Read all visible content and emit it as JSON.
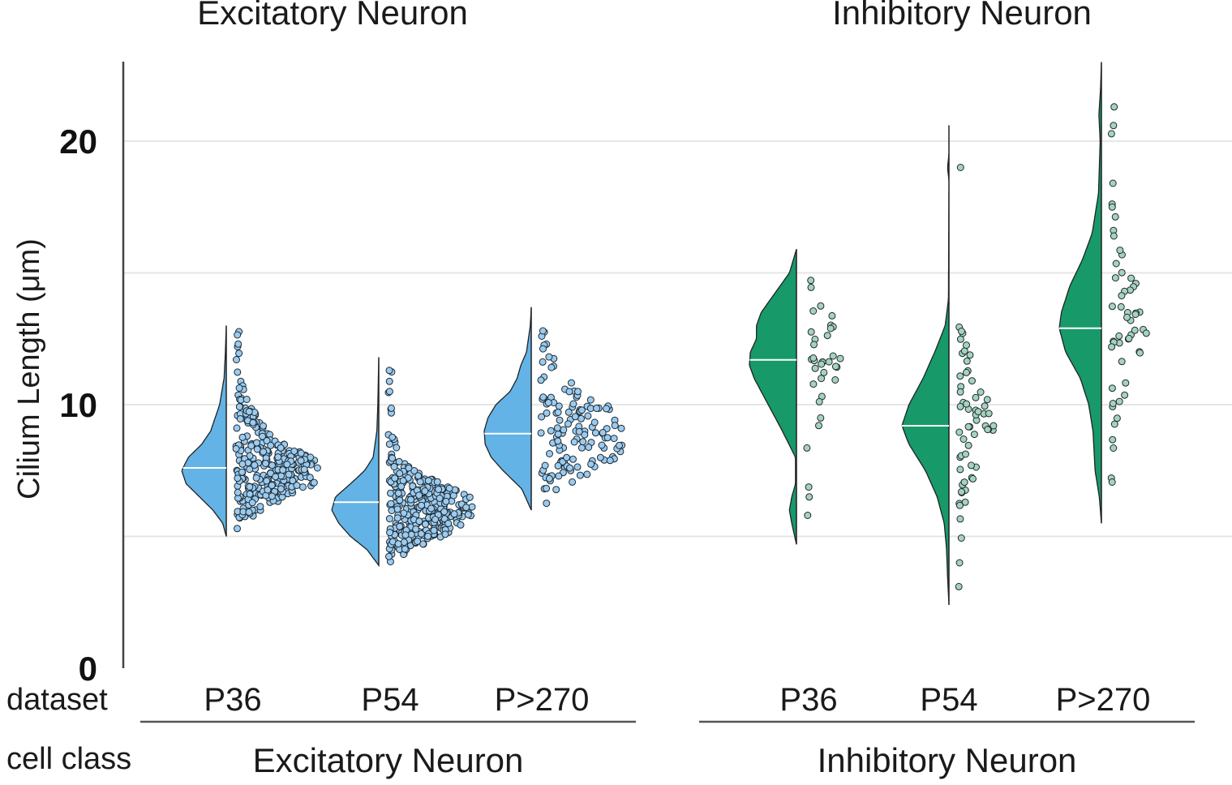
{
  "chart_data": {
    "type": "raincloud",
    "ylabel": "Cilium Length (μm)",
    "ylim": [
      0,
      23
    ],
    "yticks": [
      0,
      10,
      20
    ],
    "grid": [
      5,
      10,
      15,
      20
    ],
    "row_labels": {
      "dataset": "dataset",
      "cell_class": "cell class"
    },
    "groups": [
      {
        "name": "Excitatory Neuron",
        "color": "#63b3e6",
        "point_color": "#9ccbef",
        "series": [
          {
            "dataset": "P36",
            "median": 7.6,
            "min": 5.0,
            "max": 13.0,
            "n": 300,
            "density": [
              [
                5.0,
                0.0
              ],
              [
                5.5,
                0.08
              ],
              [
                6.0,
                0.3
              ],
              [
                6.5,
                0.6
              ],
              [
                7.0,
                0.9
              ],
              [
                7.5,
                1.0
              ],
              [
                8.0,
                0.85
              ],
              [
                8.5,
                0.55
              ],
              [
                9.0,
                0.35
              ],
              [
                10.0,
                0.15
              ],
              [
                11.0,
                0.05
              ],
              [
                12.0,
                0.02
              ],
              [
                13.0,
                0.0
              ]
            ],
            "outliers": [
              12.2,
              12.3
            ]
          },
          {
            "dataset": "P54",
            "median": 6.3,
            "min": 3.9,
            "max": 11.8,
            "n": 330,
            "density": [
              [
                3.9,
                0.0
              ],
              [
                4.5,
                0.25
              ],
              [
                5.0,
                0.6
              ],
              [
                5.5,
                0.85
              ],
              [
                6.0,
                1.0
              ],
              [
                6.5,
                0.92
              ],
              [
                7.0,
                0.6
              ],
              [
                7.5,
                0.3
              ],
              [
                8.0,
                0.12
              ],
              [
                9.0,
                0.04
              ],
              [
                10.0,
                0.02
              ],
              [
                11.8,
                0.0
              ]
            ],
            "outliers": [
              10.5,
              11.3
            ]
          },
          {
            "dataset": "P>270",
            "median": 8.9,
            "min": 6.0,
            "max": 13.7,
            "n": 130,
            "density": [
              [
                6.0,
                0.0
              ],
              [
                6.8,
                0.2
              ],
              [
                7.5,
                0.6
              ],
              [
                8.0,
                0.85
              ],
              [
                8.5,
                0.98
              ],
              [
                9.0,
                1.0
              ],
              [
                9.5,
                0.92
              ],
              [
                10.0,
                0.75
              ],
              [
                10.5,
                0.45
              ],
              [
                11.0,
                0.3
              ],
              [
                11.5,
                0.22
              ],
              [
                12.0,
                0.1
              ],
              [
                13.0,
                0.02
              ],
              [
                13.7,
                0.0
              ]
            ],
            "outliers": [
              12.6,
              12.8
            ]
          }
        ]
      },
      {
        "name": "Inhibitory Neuron",
        "color": "#17996a",
        "point_color": "#a6d3bb",
        "series": [
          {
            "dataset": "P36",
            "median": 11.7,
            "min": 4.7,
            "max": 15.9,
            "n": 35,
            "density": [
              [
                4.7,
                0.0
              ],
              [
                5.5,
                0.1
              ],
              [
                6.0,
                0.15
              ],
              [
                6.5,
                0.1
              ],
              [
                7.0,
                0.02
              ],
              [
                8.0,
                0.02
              ],
              [
                9.0,
                0.3
              ],
              [
                10.0,
                0.6
              ],
              [
                11.0,
                0.9
              ],
              [
                11.5,
                1.0
              ],
              [
                12.0,
                0.98
              ],
              [
                12.5,
                0.85
              ],
              [
                13.0,
                0.85
              ],
              [
                13.5,
                0.75
              ],
              [
                14.0,
                0.55
              ],
              [
                15.0,
                0.15
              ],
              [
                15.9,
                0.0
              ]
            ],
            "outliers": [
              6.5
            ]
          },
          {
            "dataset": "P54",
            "median": 9.2,
            "min": 2.4,
            "max": 20.6,
            "n": 60,
            "density": [
              [
                2.4,
                0.0
              ],
              [
                3.5,
                0.03
              ],
              [
                4.5,
                0.05
              ],
              [
                5.5,
                0.1
              ],
              [
                6.5,
                0.25
              ],
              [
                7.5,
                0.5
              ],
              [
                8.5,
                0.85
              ],
              [
                9.2,
                1.0
              ],
              [
                10.0,
                0.85
              ],
              [
                11.0,
                0.55
              ],
              [
                12.0,
                0.3
              ],
              [
                13.0,
                0.08
              ],
              [
                14.0,
                0.01
              ],
              [
                18.5,
                0.0
              ],
              [
                19.0,
                0.03
              ],
              [
                19.5,
                0.0
              ],
              [
                20.6,
                0.0
              ]
            ],
            "outliers": [
              19.0,
              4.0
            ]
          },
          {
            "dataset": "P>270",
            "median": 12.9,
            "min": 5.5,
            "max": 23.0,
            "n": 50,
            "density": [
              [
                5.5,
                0.0
              ],
              [
                6.5,
                0.05
              ],
              [
                7.5,
                0.15
              ],
              [
                9.0,
                0.2
              ],
              [
                10.0,
                0.3
              ],
              [
                11.0,
                0.5
              ],
              [
                12.0,
                0.85
              ],
              [
                12.9,
                1.0
              ],
              [
                13.5,
                0.95
              ],
              [
                14.5,
                0.75
              ],
              [
                15.5,
                0.45
              ],
              [
                16.5,
                0.22
              ],
              [
                18.0,
                0.07
              ],
              [
                20.0,
                0.03
              ],
              [
                21.0,
                0.06
              ],
              [
                22.0,
                0.02
              ],
              [
                23.0,
                0.0
              ]
            ],
            "outliers": [
              21.3,
              18.4,
              17.5,
              16.4
            ]
          }
        ]
      }
    ]
  }
}
